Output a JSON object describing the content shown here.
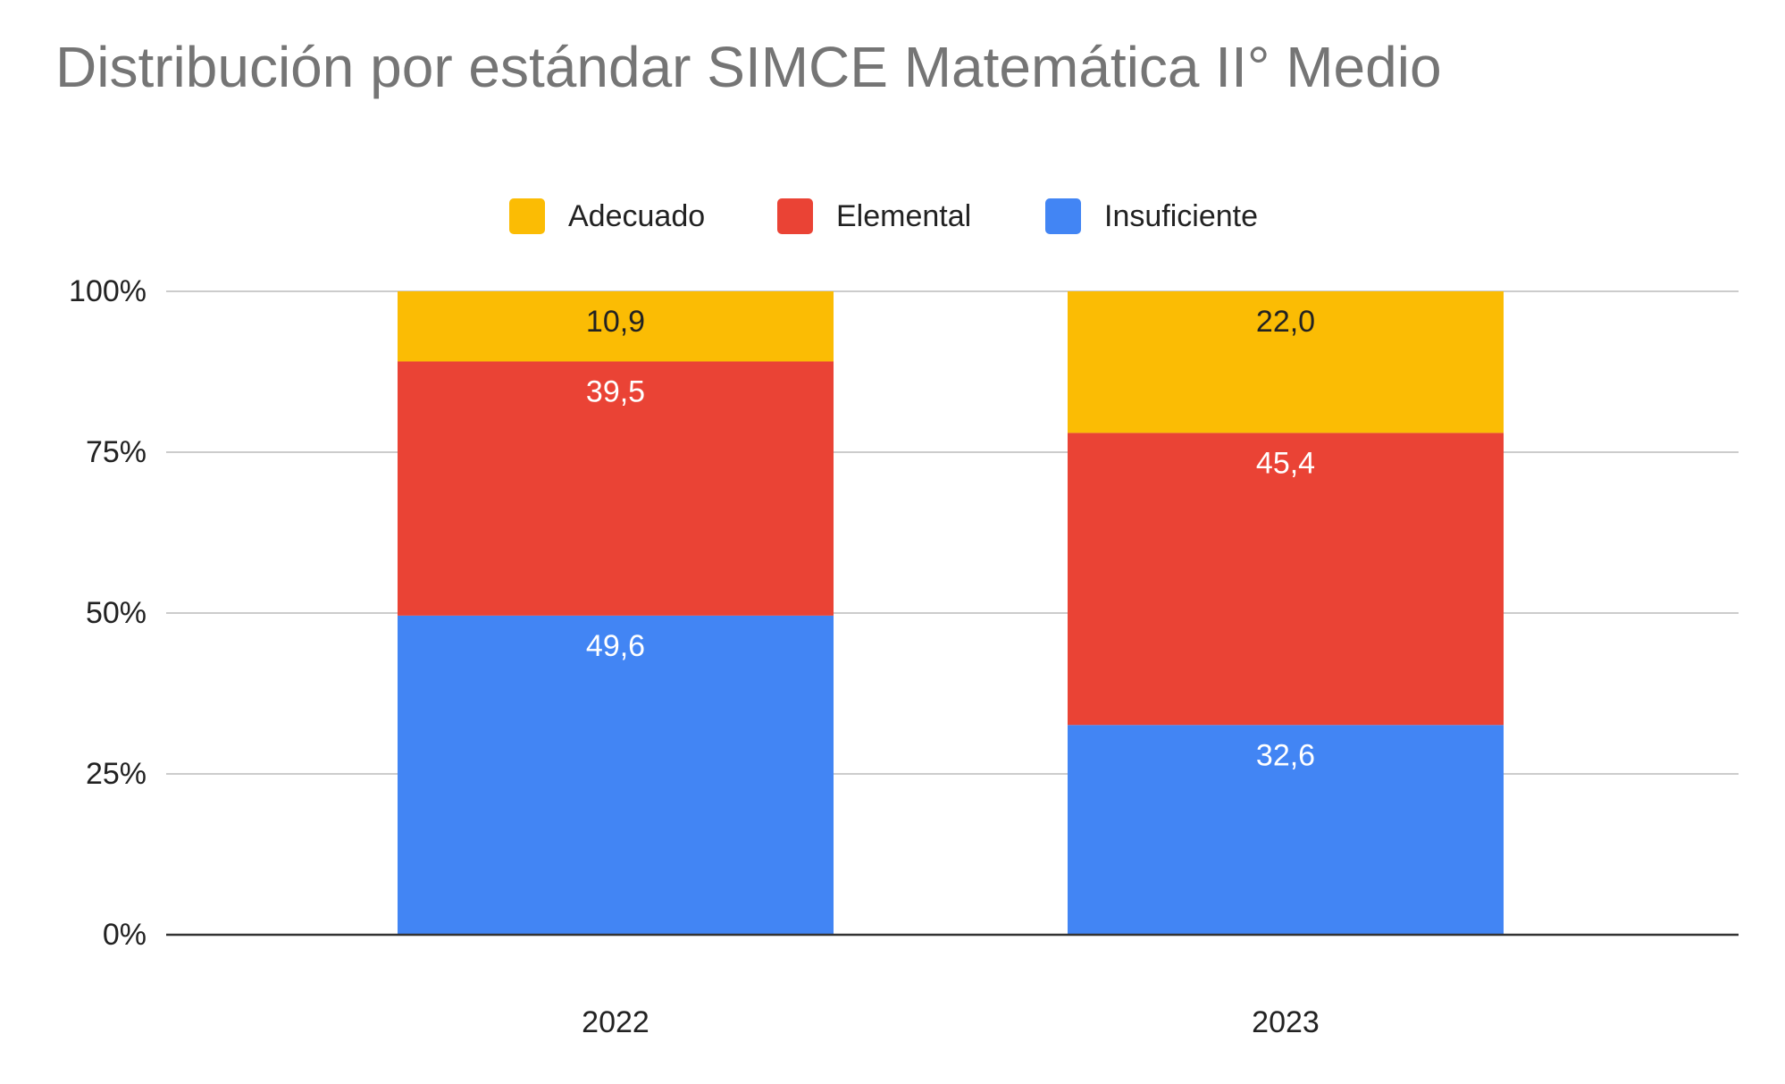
{
  "chart_data": {
    "type": "bar",
    "stacked": true,
    "title": "Distribución por estándar SIMCE Matemática II° Medio",
    "xlabel": "",
    "ylabel": "",
    "categories": [
      "2022",
      "2023"
    ],
    "series": [
      {
        "name": "Insuficiente",
        "color": "#4285f4",
        "label_color": "#ffffff",
        "values": [
          49.6,
          32.6
        ],
        "labels": [
          "49,6",
          "32,6"
        ]
      },
      {
        "name": "Elemental",
        "color": "#ea4335",
        "label_color": "#ffffff",
        "values": [
          39.5,
          45.4
        ],
        "labels": [
          "39,5",
          "45,4"
        ]
      },
      {
        "name": "Adecuado",
        "color": "#fbbc04",
        "label_color": "#222222",
        "values": [
          10.9,
          22.0
        ],
        "labels": [
          "10,9",
          "22,0"
        ]
      }
    ],
    "legend_order": [
      "Adecuado",
      "Elemental",
      "Insuficiente"
    ],
    "legend_position": "top",
    "ylim": [
      0,
      100
    ],
    "yticks": [
      0,
      25,
      50,
      75,
      100
    ],
    "ytick_labels": [
      "0%",
      "25%",
      "50%",
      "75%",
      "100%"
    ],
    "grid": true
  }
}
